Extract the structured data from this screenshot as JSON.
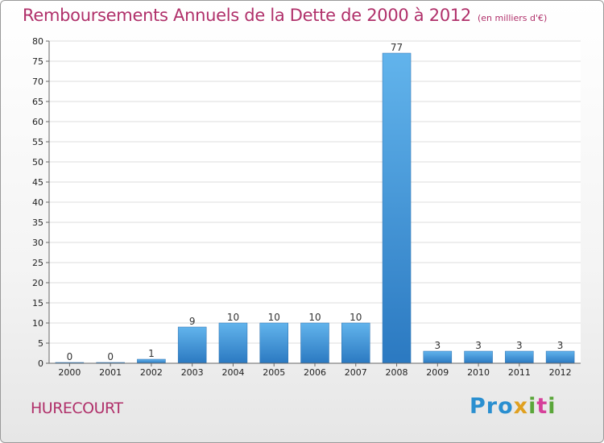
{
  "header": {
    "title": "Remboursements Annuels de la Dette de 2000 à 2012",
    "unit": "(en milliers d'€)"
  },
  "commune": "HURECOURT",
  "logo": {
    "p1": "Pro",
    "p2": "x",
    "p3": "i",
    "p4": "t",
    "p5": "i"
  },
  "colors": {
    "title": "#b0306a",
    "bar_light": "#5fb1ea",
    "bar_dark": "#2a78c0"
  },
  "chart_data": {
    "type": "bar",
    "title": "Remboursements Annuels de la Dette de 2000 à 2012",
    "xlabel": "",
    "ylabel": "",
    "ylim": [
      0,
      80
    ],
    "ytick_step": 5,
    "grid": true,
    "categories": [
      "2000",
      "2001",
      "2002",
      "2003",
      "2004",
      "2005",
      "2006",
      "2007",
      "2008",
      "2009",
      "2010",
      "2011",
      "2012"
    ],
    "values": [
      0,
      0,
      1,
      9,
      10,
      10,
      10,
      10,
      77,
      3,
      3,
      3,
      3
    ]
  }
}
